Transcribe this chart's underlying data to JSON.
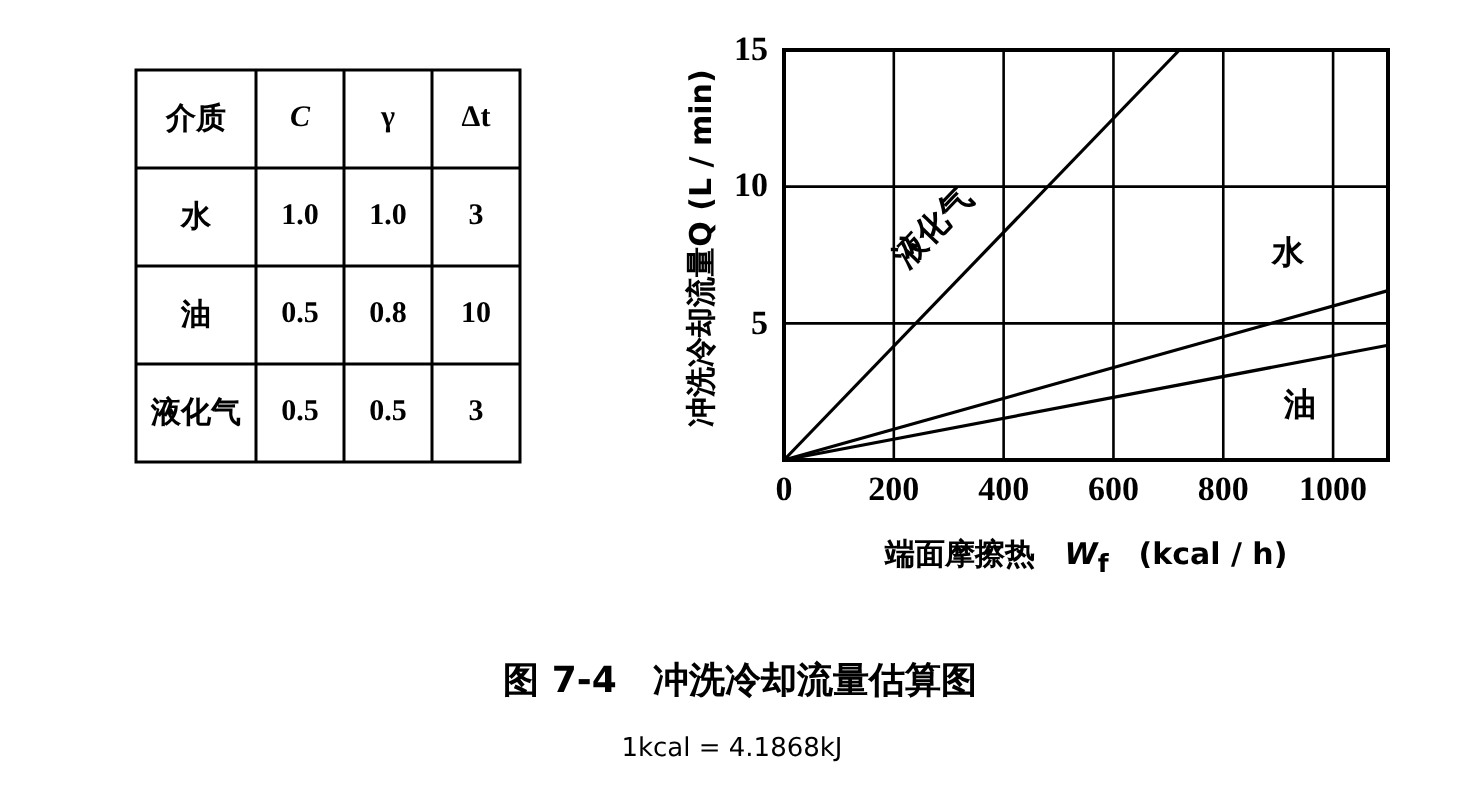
{
  "chart_data": [
    {
      "type": "other",
      "annotations": [
        "介质",
        "C",
        "γ",
        "Δt",
        "水",
        "1.0",
        "1.0",
        "3",
        "油",
        "0.5",
        "0.8",
        "10",
        "液化气",
        "0.5",
        "0.5",
        "3"
      ]
    },
    {
      "type": "line",
      "title": "图 7-4　冲洗冷却流量估算图",
      "xlabel": "端面摩擦热　*W*$_{f}$　(kcal / h)",
      "ylabel": "冲洗冷却流量Q (L / min)",
      "annotations": [
        "1kcal = 4.1868kJ"
      ],
      "xlim": [
        0,
        1100
      ],
      "ylim": [
        0,
        15
      ],
      "xticks": [
        0,
        200,
        400,
        600,
        800,
        1000
      ],
      "yticks": [
        5,
        10,
        15
      ],
      "grid": true,
      "marker": "none",
      "line_style": "solid",
      "series": [
        {
          "name": "液化气",
          "color": "#000000",
          "x": [
            0,
            720
          ],
          "values": [
            0,
            15
          ]
        },
        {
          "name": "水",
          "color": "#000000",
          "x": [
            0,
            1100
          ],
          "values": [
            0,
            6.2
          ]
        },
        {
          "name": "油",
          "color": "#000000",
          "x": [
            0,
            1100
          ],
          "values": [
            0,
            4.2
          ]
        }
      ]
    }
  ]
}
